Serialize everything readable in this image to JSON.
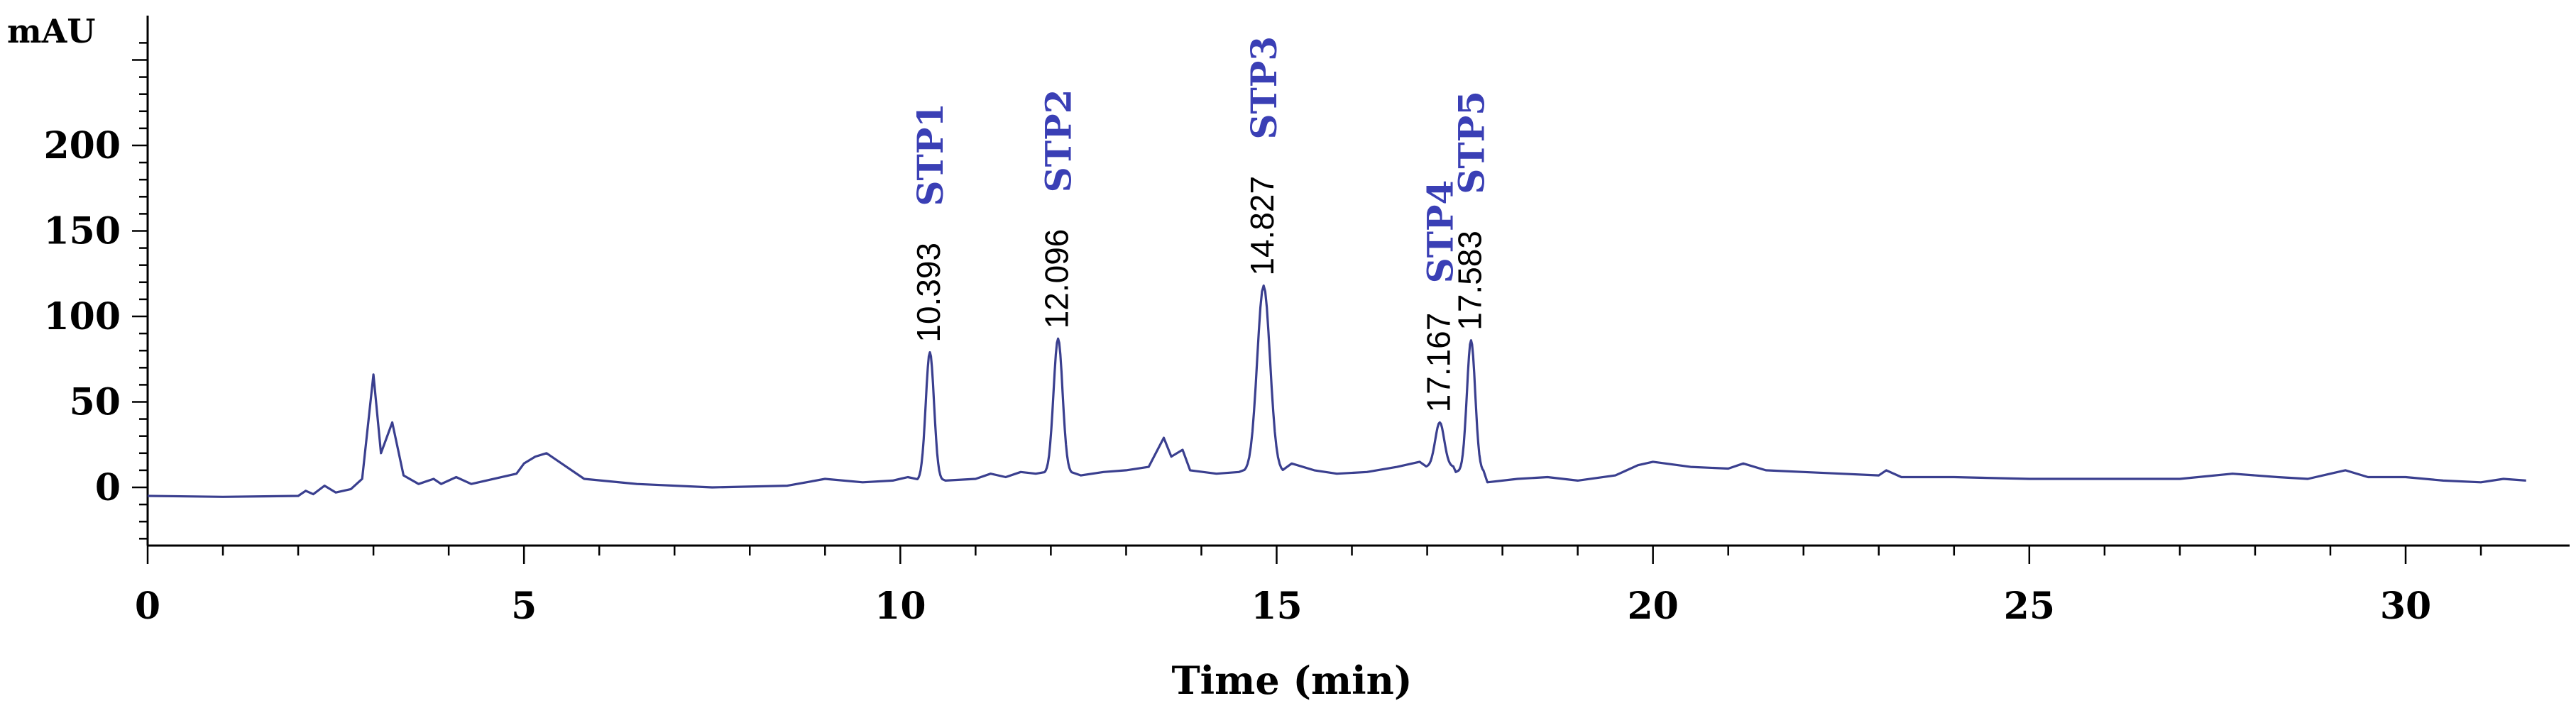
{
  "chart_data": {
    "type": "line",
    "ylabel": "mAU",
    "xlabel": "Time (min)",
    "xlim": [
      0,
      31.7
    ],
    "ylim": [
      -35,
      275
    ],
    "x_ticks": [
      "0",
      "5",
      "10",
      "15",
      "20",
      "25",
      "30"
    ],
    "y_ticks": [
      "0",
      "50",
      "100",
      "150",
      "200"
    ],
    "line_color": "#3a3f8f",
    "label_color": "#3a3fb5",
    "grid": false,
    "baseline_points": [
      [
        0,
        -5
      ],
      [
        1.0,
        -5.5
      ],
      [
        2.0,
        -5
      ],
      [
        2.1,
        -2
      ],
      [
        2.2,
        -4
      ],
      [
        2.35,
        1
      ],
      [
        2.5,
        -3
      ],
      [
        2.7,
        -1
      ],
      [
        2.85,
        5
      ],
      [
        3.0,
        66
      ],
      [
        3.1,
        20
      ],
      [
        3.25,
        38
      ],
      [
        3.4,
        7
      ],
      [
        3.6,
        2
      ],
      [
        3.8,
        5
      ],
      [
        3.9,
        2
      ],
      [
        4.1,
        6
      ],
      [
        4.3,
        2
      ],
      [
        4.9,
        8
      ],
      [
        5.0,
        14
      ],
      [
        5.15,
        18
      ],
      [
        5.3,
        20
      ],
      [
        5.5,
        14
      ],
      [
        5.8,
        5
      ],
      [
        6.5,
        2
      ],
      [
        7.5,
        0
      ],
      [
        8.5,
        1
      ],
      [
        9.0,
        5
      ],
      [
        9.5,
        3
      ],
      [
        9.9,
        4
      ],
      [
        10.1,
        6
      ]
    ],
    "tail_points": [
      [
        17.8,
        3
      ],
      [
        18.2,
        5
      ],
      [
        18.6,
        6
      ],
      [
        19.0,
        4
      ],
      [
        19.5,
        7
      ],
      [
        19.8,
        13
      ],
      [
        20.0,
        15
      ],
      [
        20.5,
        12
      ],
      [
        21.0,
        11
      ],
      [
        21.2,
        14
      ],
      [
        21.5,
        10
      ],
      [
        22.0,
        9
      ],
      [
        22.5,
        8
      ],
      [
        23.0,
        7
      ],
      [
        23.1,
        10
      ],
      [
        23.3,
        6
      ],
      [
        24.0,
        6
      ],
      [
        25.0,
        5
      ],
      [
        26.0,
        5
      ],
      [
        27.0,
        5
      ],
      [
        27.7,
        8
      ],
      [
        28.3,
        6
      ],
      [
        28.7,
        5
      ],
      [
        29.0,
        8
      ],
      [
        29.2,
        10
      ],
      [
        29.5,
        6
      ],
      [
        30.0,
        6
      ],
      [
        30.5,
        4
      ],
      [
        31.0,
        3
      ],
      [
        31.3,
        5
      ],
      [
        31.6,
        4
      ]
    ],
    "middle_points": [
      [
        10.6,
        4
      ],
      [
        11.0,
        5
      ],
      [
        11.2,
        8
      ],
      [
        11.4,
        6
      ],
      [
        11.6,
        9
      ],
      [
        11.8,
        8
      ],
      [
        12.4,
        7
      ],
      [
        12.7,
        9
      ],
      [
        13.0,
        10
      ],
      [
        13.3,
        12
      ],
      [
        13.5,
        29
      ],
      [
        13.6,
        18
      ],
      [
        13.75,
        22
      ],
      [
        13.85,
        10
      ],
      [
        14.2,
        8
      ],
      [
        14.5,
        9
      ],
      [
        15.2,
        14
      ],
      [
        15.5,
        10
      ],
      [
        15.8,
        8
      ],
      [
        16.2,
        9
      ],
      [
        16.6,
        12
      ],
      [
        16.9,
        15
      ]
    ],
    "peaks": [
      {
        "name": "STP1",
        "rt": "10.393",
        "x": 10.393,
        "y": 79
      },
      {
        "name": "STP2",
        "rt": "12.096",
        "x": 12.096,
        "y": 87
      },
      {
        "name": "STP3",
        "rt": "14.827",
        "x": 14.827,
        "y": 118
      },
      {
        "name": "STP4",
        "rt": "17.167",
        "x": 17.167,
        "y": 38
      },
      {
        "name": "STP5",
        "rt": "17.583",
        "x": 17.583,
        "y": 86
      }
    ]
  }
}
